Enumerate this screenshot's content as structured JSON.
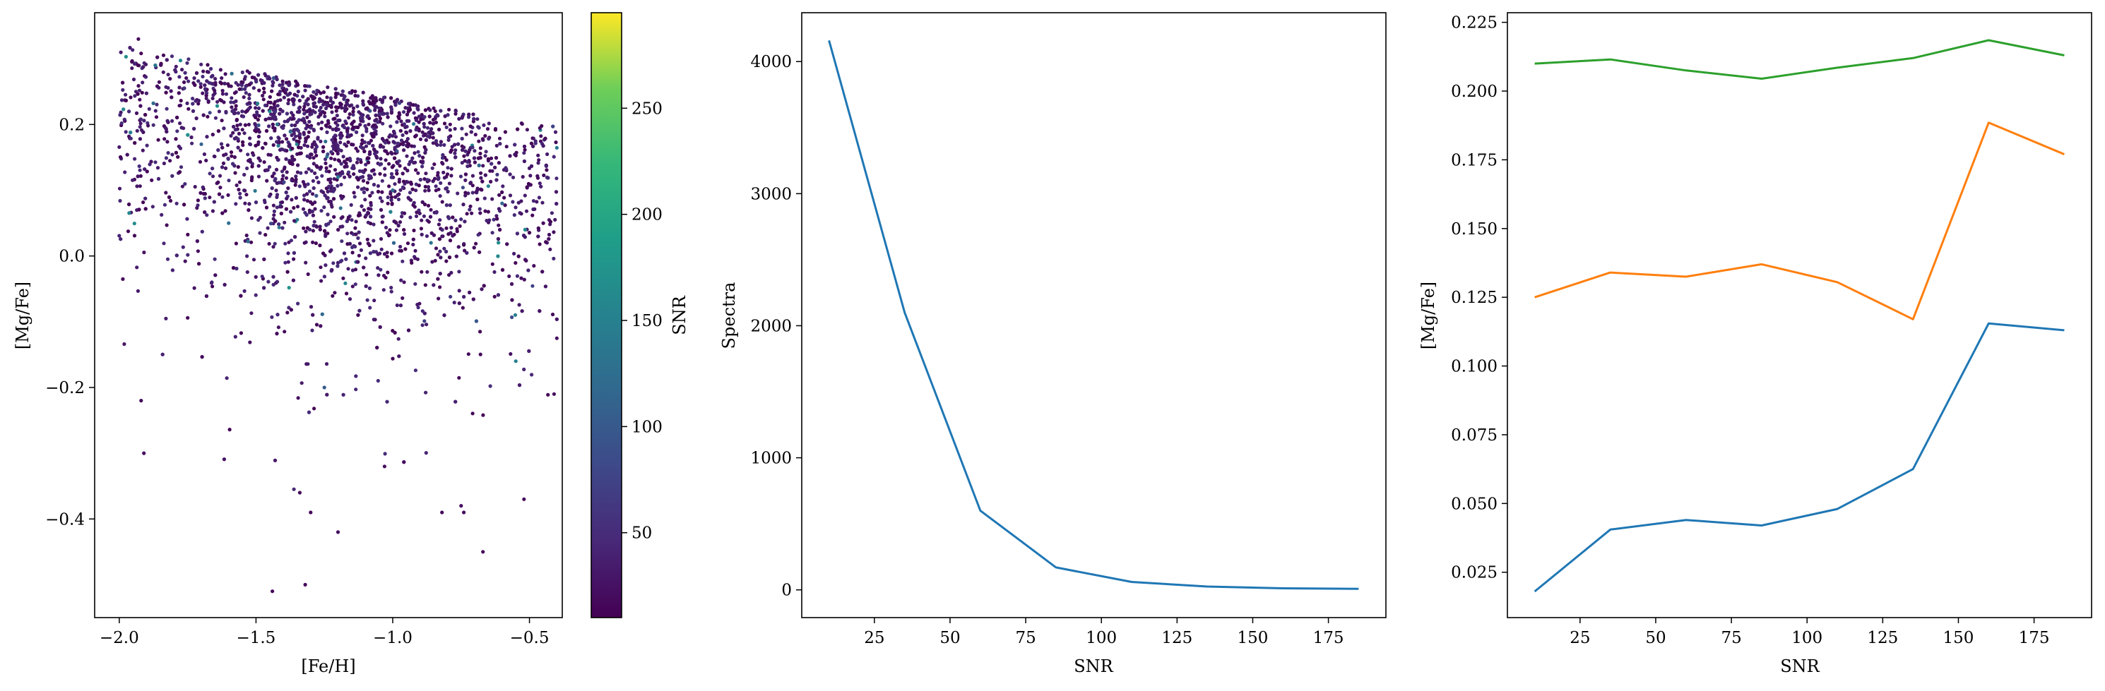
{
  "figure": {
    "panels": [
      {
        "name": "scatter",
        "xlabel": "[Fe/H]",
        "ylabel": "[Mg/Fe]",
        "xticks": [
          -2.0,
          -1.5,
          -1.0,
          -0.5
        ],
        "xtick_labels": [
          "−2.0",
          "−1.5",
          "−1.0",
          "−0.5"
        ],
        "yticks": [
          0.2,
          0.0,
          -0.2,
          -0.4
        ],
        "ytick_labels": [
          "0.2",
          "0.0",
          "−0.2",
          "−0.4"
        ],
        "colorbar": {
          "label": "SNR",
          "ticks": [
            50,
            100,
            150,
            200,
            250
          ],
          "tick_labels": [
            "50",
            "100",
            "150",
            "200",
            "250"
          ],
          "range": [
            10,
            295
          ],
          "colormap": "viridis"
        }
      },
      {
        "name": "counts",
        "xlabel": "SNR",
        "ylabel": "Spectra",
        "xticks": [
          25,
          50,
          75,
          100,
          125,
          150,
          175
        ],
        "xtick_labels": [
          "25",
          "50",
          "75",
          "100",
          "125",
          "150",
          "175"
        ],
        "yticks": [
          0,
          1000,
          2000,
          3000,
          4000
        ],
        "ytick_labels": [
          "0",
          "1000",
          "2000",
          "3000",
          "4000"
        ]
      },
      {
        "name": "mgfe-vs-snr",
        "xlabel": "SNR",
        "ylabel": "[Mg/Fe]",
        "xticks": [
          25,
          50,
          75,
          100,
          125,
          150,
          175
        ],
        "xtick_labels": [
          "25",
          "50",
          "75",
          "100",
          "125",
          "150",
          "175"
        ],
        "yticks": [
          0.025,
          0.05,
          0.075,
          0.1,
          0.125,
          0.15,
          0.175,
          0.2,
          0.225
        ],
        "ytick_labels": [
          "0.025",
          "0.050",
          "0.075",
          "0.100",
          "0.125",
          "0.150",
          "0.175",
          "0.200",
          "0.225"
        ]
      }
    ]
  },
  "chart_data": [
    {
      "type": "scatter",
      "xlabel": "[Fe/H]",
      "ylabel": "[Mg/Fe]",
      "xlim": [
        -2.09,
        -0.38
      ],
      "ylim": [
        -0.55,
        0.37
      ],
      "color_by": "SNR",
      "colormap": "viridis",
      "color_range": [
        10,
        295
      ],
      "grid": false,
      "approx_point_count": 3000,
      "distribution": {
        "feh_range": [
          -2.0,
          -0.4
        ],
        "mgfe_upper_envelope": [
          [
            -2.0,
            0.32
          ],
          [
            -1.5,
            0.28
          ],
          [
            -1.0,
            0.24
          ],
          [
            -0.5,
            0.2
          ]
        ],
        "dense_core": {
          "feh": -1.2,
          "mgfe": 0.15
        },
        "typical_snr": "10-50"
      },
      "points": [
        [
          -1.93,
          0.33,
          20
        ],
        [
          -1.92,
          -0.22,
          18
        ],
        [
          -1.91,
          -0.3,
          22
        ],
        [
          -1.44,
          -0.51,
          15
        ],
        [
          -1.32,
          -0.5,
          17
        ],
        [
          -1.2,
          -0.42,
          20
        ],
        [
          -1.3,
          -0.39,
          16
        ],
        [
          -1.34,
          -0.36,
          19
        ],
        [
          -1.03,
          -0.32,
          21
        ],
        [
          -0.82,
          -0.39,
          18
        ],
        [
          -0.75,
          -0.38,
          20
        ],
        [
          -0.74,
          -0.39,
          17
        ],
        [
          -0.67,
          -0.45,
          16
        ],
        [
          -0.52,
          -0.37,
          19
        ],
        [
          -0.41,
          -0.21,
          22
        ],
        [
          -1.2,
          0.12,
          140
        ],
        [
          -1.0,
          0.1,
          120
        ],
        [
          -1.7,
          0.17,
          110
        ],
        [
          -1.45,
          0.22,
          160
        ],
        [
          -0.86,
          0.02,
          130
        ],
        [
          -0.55,
          -0.16,
          150
        ],
        [
          -1.25,
          -0.2,
          100
        ],
        [
          -0.6,
          0.08,
          115
        ],
        [
          -1.6,
          0.05,
          125
        ]
      ]
    },
    {
      "type": "line",
      "xlabel": "SNR",
      "ylabel": "Spectra",
      "x": [
        10,
        35,
        60,
        85,
        110,
        135,
        160,
        185
      ],
      "y": [
        4160,
        2100,
        600,
        170,
        60,
        25,
        12,
        8
      ],
      "xlim": [
        1,
        194
      ],
      "ylim": [
        -210,
        4370
      ],
      "grid": false,
      "series": [
        {
          "color": "#1f77b4",
          "x": [
            10,
            35,
            60,
            85,
            110,
            135,
            160,
            185
          ],
          "y": [
            4160,
            2100,
            600,
            170,
            60,
            25,
            12,
            8
          ]
        }
      ]
    },
    {
      "type": "line",
      "xlabel": "SNR",
      "ylabel": "[Mg/Fe]",
      "x": [
        10,
        35,
        60,
        85,
        110,
        135,
        160,
        185
      ],
      "xlim": [
        1,
        194
      ],
      "ylim": [
        0.0085,
        0.2285
      ],
      "grid": false,
      "series": [
        {
          "color": "#1f77b4",
          "x": [
            10,
            35,
            60,
            85,
            110,
            135,
            160,
            185
          ],
          "values": [
            0.018,
            0.0405,
            0.044,
            0.042,
            0.048,
            0.0625,
            0.1155,
            0.113
          ]
        },
        {
          "color": "#ff7f0e",
          "x": [
            10,
            35,
            60,
            85,
            110,
            135,
            160,
            185
          ],
          "values": [
            0.125,
            0.134,
            0.1325,
            0.137,
            0.1305,
            0.117,
            0.1885,
            0.177
          ]
        },
        {
          "color": "#2ca02c",
          "x": [
            10,
            35,
            60,
            85,
            110,
            135,
            160,
            185
          ],
          "values": [
            0.21,
            0.2115,
            0.2075,
            0.2045,
            0.2085,
            0.212,
            0.2185,
            0.213
          ]
        }
      ]
    }
  ]
}
